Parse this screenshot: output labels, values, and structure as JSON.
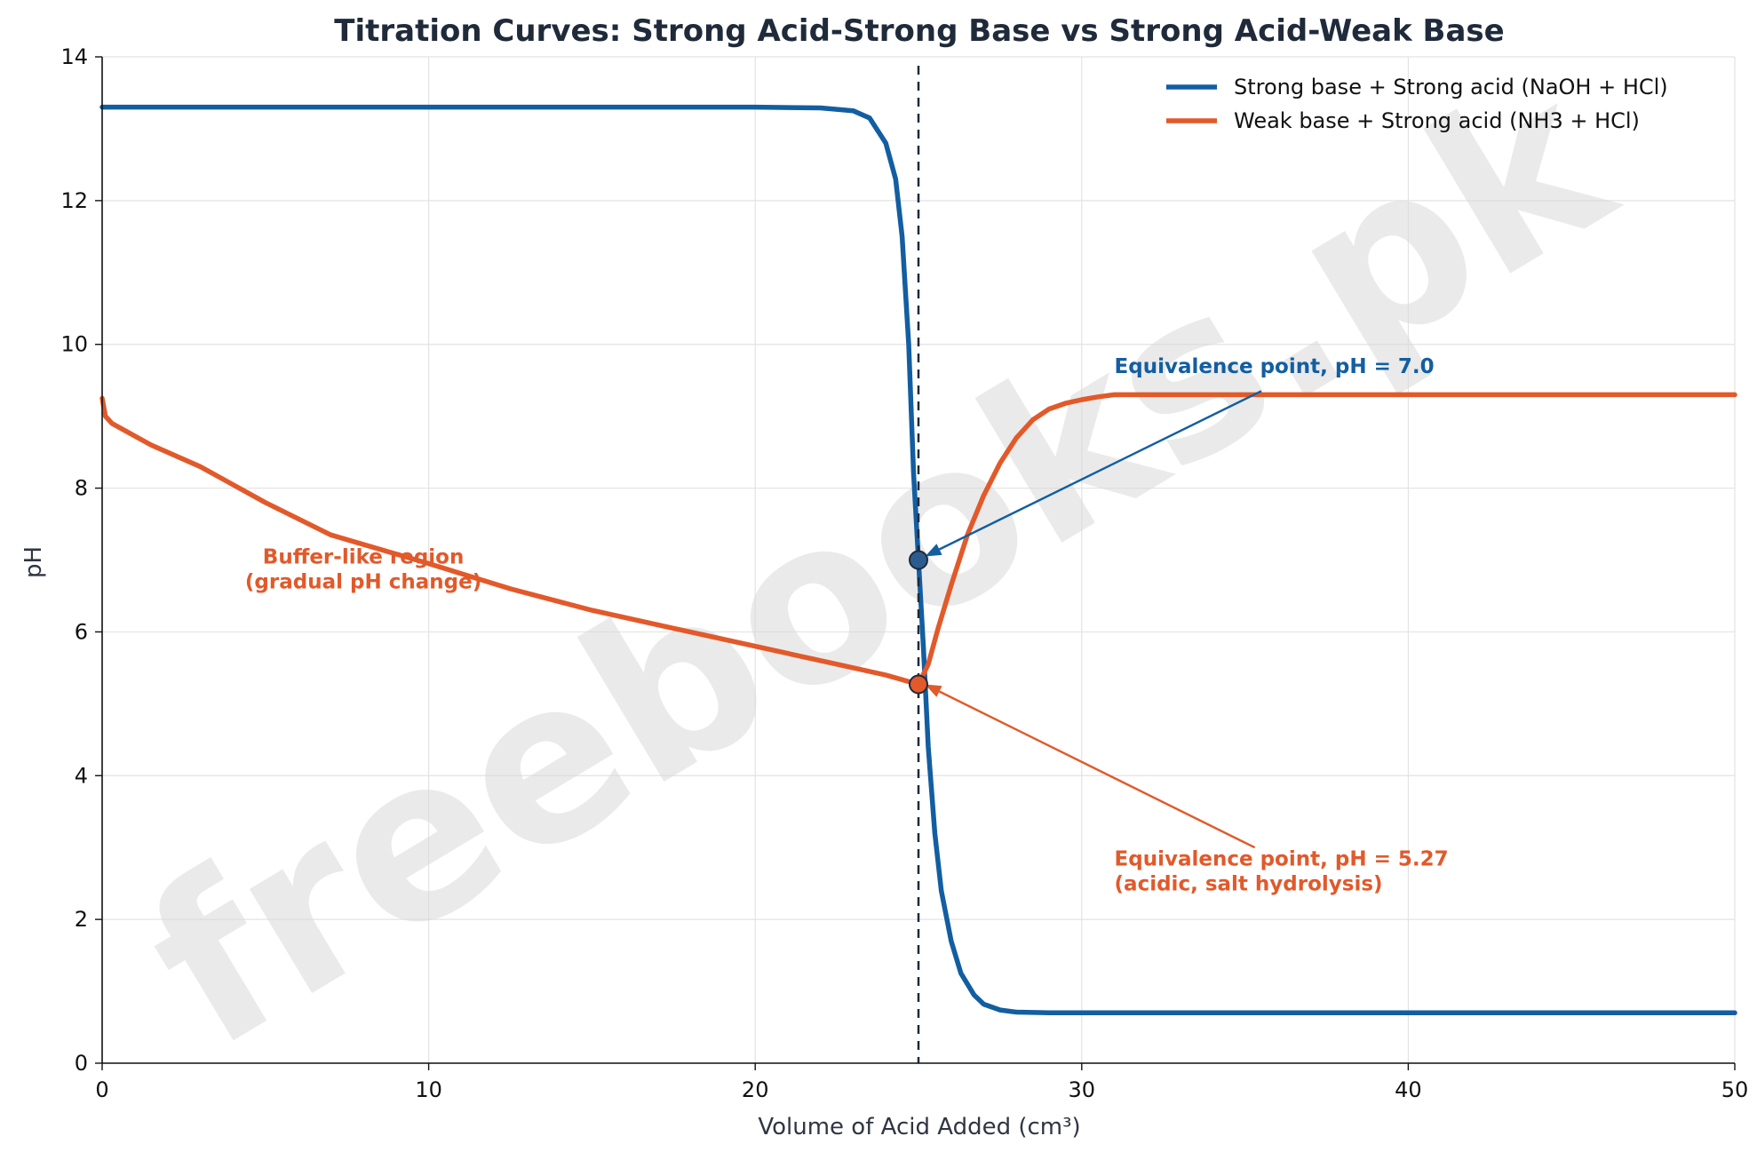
{
  "chart_data": {
    "type": "line",
    "title": "Titration Curves: Strong Acid-Strong Base vs Strong Acid-Weak Base",
    "xlabel": "Volume of Acid Added (cm³)",
    "ylabel": "pH",
    "xlim": [
      0,
      50
    ],
    "ylim": [
      0,
      14
    ],
    "xticks": [
      0,
      10,
      20,
      30,
      40,
      50
    ],
    "yticks": [
      0,
      2,
      4,
      6,
      8,
      10,
      12,
      14
    ],
    "grid": true,
    "legend_position": "top-right",
    "equivalence_volume": 25,
    "series": [
      {
        "name": "Strong base + Strong acid (NaOH + HCl)",
        "color": "#125ea1",
        "points": [
          [
            0,
            13.3
          ],
          [
            10,
            13.3
          ],
          [
            20,
            13.3
          ],
          [
            22,
            13.29
          ],
          [
            23,
            13.25
          ],
          [
            23.5,
            13.15
          ],
          [
            24,
            12.8
          ],
          [
            24.3,
            12.3
          ],
          [
            24.5,
            11.5
          ],
          [
            24.7,
            10.0
          ],
          [
            24.85,
            8.2
          ],
          [
            25,
            7.0
          ],
          [
            25.15,
            5.8
          ],
          [
            25.3,
            4.4
          ],
          [
            25.5,
            3.2
          ],
          [
            25.7,
            2.4
          ],
          [
            26,
            1.7
          ],
          [
            26.3,
            1.25
          ],
          [
            26.7,
            0.95
          ],
          [
            27,
            0.82
          ],
          [
            27.5,
            0.74
          ],
          [
            28,
            0.71
          ],
          [
            29,
            0.7
          ],
          [
            30,
            0.7
          ],
          [
            40,
            0.7
          ],
          [
            50,
            0.7
          ]
        ]
      },
      {
        "name": "Weak base + Strong acid (NH3 + HCl)",
        "color": "#e2592a",
        "points": [
          [
            0,
            9.25
          ],
          [
            0.1,
            9.0
          ],
          [
            0.3,
            8.9
          ],
          [
            0.7,
            8.8
          ],
          [
            1.5,
            8.6
          ],
          [
            3,
            8.3
          ],
          [
            5,
            7.8
          ],
          [
            7,
            7.35
          ],
          [
            10,
            6.95
          ],
          [
            12.5,
            6.6
          ],
          [
            15,
            6.3
          ],
          [
            17.5,
            6.05
          ],
          [
            20,
            5.8
          ],
          [
            22.5,
            5.55
          ],
          [
            24,
            5.4
          ],
          [
            25,
            5.27
          ],
          [
            25.3,
            5.55
          ],
          [
            25.6,
            6.05
          ],
          [
            26,
            6.65
          ],
          [
            26.5,
            7.35
          ],
          [
            27,
            7.9
          ],
          [
            27.5,
            8.35
          ],
          [
            28,
            8.7
          ],
          [
            28.5,
            8.95
          ],
          [
            29,
            9.1
          ],
          [
            29.5,
            9.18
          ],
          [
            30,
            9.23
          ],
          [
            30.5,
            9.27
          ],
          [
            31,
            9.3
          ],
          [
            40,
            9.3
          ],
          [
            50,
            9.3
          ]
        ]
      }
    ],
    "markers": [
      {
        "x": 25,
        "y": 7.0,
        "color": "#2c5c8f"
      },
      {
        "x": 25,
        "y": 5.27,
        "color": "#e2592a"
      }
    ],
    "annotations": {
      "strong": {
        "text": "Equivalence point, pH = 7.0",
        "color": "#125ea1",
        "text_x": 31,
        "text_y": 9.6,
        "arrow_from": [
          35.5,
          9.35
        ],
        "arrow_to": [
          25.2,
          7.05
        ]
      },
      "weak": {
        "line1": "Equivalence point, pH = 5.27",
        "line2": "(acidic, salt hydrolysis)",
        "color": "#e2592a",
        "text_x": 31,
        "text_y": 2.75,
        "arrow_from": [
          35.3,
          3.0
        ],
        "arrow_to": [
          25.2,
          5.27
        ]
      },
      "buffer": {
        "line1": "Buffer-like region",
        "line2": "(gradual pH change)",
        "color": "#e2592a",
        "text_x": 8,
        "text_y": 6.95
      }
    },
    "watermark": "freebooks.pk"
  }
}
